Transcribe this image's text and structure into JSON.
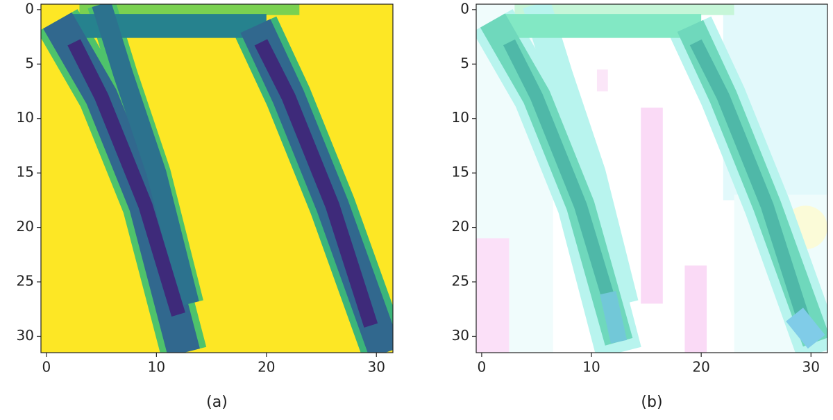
{
  "chart_data": [
    {
      "type": "image",
      "xlim": [
        -0.5,
        31.5
      ],
      "ylim": [
        31.5,
        -0.5
      ],
      "xticks": [
        0,
        10,
        20,
        30
      ],
      "yticks": [
        0,
        5,
        10,
        15,
        20,
        25,
        30
      ],
      "caption": "(a)"
    },
    {
      "type": "image",
      "xlim": [
        -0.5,
        31.5
      ],
      "ylim": [
        31.5,
        -0.5
      ],
      "xticks": [
        0,
        10,
        20,
        30
      ],
      "yticks": [
        0,
        5,
        10,
        15,
        20,
        25,
        30
      ],
      "caption": "(b)"
    }
  ]
}
